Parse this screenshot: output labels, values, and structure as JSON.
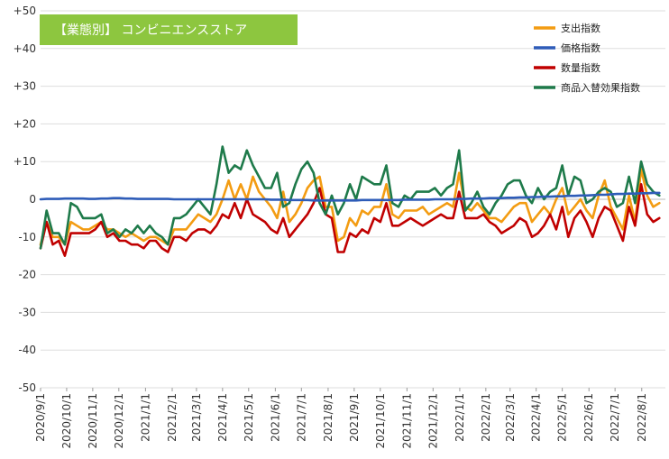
{
  "chart_data": {
    "type": "line",
    "title": "【業態別】 コンビニエンスストア",
    "title_bg": "#8dc63f",
    "ylim": [
      -50,
      50
    ],
    "ytick_values": [
      50,
      40,
      30,
      20,
      10,
      0,
      -10,
      -20,
      -30,
      -40,
      -50
    ],
    "ytick_labels": [
      "+50",
      "+40",
      "+30",
      "+20",
      "+10",
      "0",
      "-10",
      "-20",
      "-30",
      "-40",
      "-50"
    ],
    "x_tick_labels": [
      "2020/9/1",
      "2020/10/1",
      "2020/11/1",
      "2020/12/1",
      "2021/1/1",
      "2021/2/1",
      "2021/3/1",
      "2021/4/1",
      "2021/5/1",
      "2021/6/1",
      "2021/7/1",
      "2021/8/1",
      "2021/9/1",
      "2021/10/1",
      "2021/11/1",
      "2021/12/1",
      "2022/1/1",
      "2022/2/1",
      "2022/3/1",
      "2022/4/1",
      "2022/5/1",
      "2022/6/1",
      "2022/7/1",
      "2022/8/1"
    ],
    "x_tick_weeks": [
      0,
      4.3,
      8.6,
      12.9,
      17.3,
      21.7,
      25.7,
      30,
      34.3,
      38.7,
      43,
      47.4,
      51.7,
      56,
      60.4,
      64.7,
      69.1,
      73.4,
      77.4,
      81.7,
      86,
      90.4,
      94.7,
      99.1
    ],
    "x_week_range": [
      0,
      103
    ],
    "grid": true,
    "legend_position": "top-right",
    "series": [
      {
        "name": "支出指数",
        "color": "#f39c12",
        "values": [
          -12,
          -6,
          -10,
          -10,
          -12,
          -6,
          -7,
          -8,
          -8,
          -7,
          -6,
          -8,
          -8,
          -9,
          -10,
          -9,
          -10,
          -11,
          -10,
          -10,
          -11,
          -12,
          -8,
          -8,
          -8,
          -6,
          -4,
          -5,
          -6,
          -4,
          0,
          5,
          0,
          4,
          0,
          6,
          2,
          0,
          -2,
          -5,
          2,
          -6,
          -4,
          -1,
          3,
          5,
          6,
          -2,
          -2,
          -11,
          -10,
          -5,
          -7,
          -3,
          -4,
          -2,
          -2,
          4,
          -4,
          -5,
          -3,
          -3,
          -3,
          -2,
          -4,
          -3,
          -2,
          -1,
          -2,
          7,
          -2,
          -3,
          -1,
          -3,
          -5,
          -5,
          -6,
          -4,
          -2,
          -1,
          -1,
          -6,
          -4,
          -2,
          -4,
          0,
          3,
          -4,
          -2,
          0,
          -3,
          -5,
          1,
          5,
          -2,
          -5,
          -8,
          1,
          -6,
          8,
          1,
          -2,
          -1
        ]
      },
      {
        "name": "価格指数",
        "color": "#2e5cb8",
        "values": [
          0,
          0.1,
          0.1,
          0.1,
          0.2,
          0.2,
          0.2,
          0.2,
          0.1,
          0.1,
          0.2,
          0.2,
          0.3,
          0.3,
          0.2,
          0.2,
          0.1,
          0.1,
          0.1,
          0.1,
          0.1,
          0.1,
          0,
          0,
          0,
          0,
          0,
          0,
          0,
          0,
          0,
          0,
          0,
          0,
          0,
          0,
          0,
          0,
          -0.1,
          -0.1,
          -0.1,
          -0.2,
          -0.2,
          -0.2,
          -0.2,
          -0.3,
          -0.3,
          -0.3,
          -0.3,
          -0.3,
          -0.3,
          -0.3,
          -0.3,
          -0.2,
          -0.2,
          -0.2,
          -0.2,
          -0.2,
          -0.2,
          -0.2,
          -0.1,
          -0.1,
          -0.1,
          -0.1,
          -0.1,
          0,
          0,
          0,
          0,
          0.1,
          0.1,
          0.2,
          0.2,
          0.2,
          0.3,
          0.3,
          0.3,
          0.4,
          0.4,
          0.5,
          0.5,
          0.6,
          0.6,
          0.7,
          0.7,
          0.8,
          0.8,
          0.9,
          0.9,
          1.0,
          1.0,
          1.1,
          1.2,
          1.2,
          1.3,
          1.4,
          1.4,
          1.5,
          1.5,
          1.6,
          1.6,
          1.7,
          1.7
        ]
      },
      {
        "name": "数量指数",
        "color": "#c00000",
        "values": [
          -13,
          -6,
          -12,
          -11,
          -15,
          -9,
          -9,
          -9,
          -9,
          -8,
          -6,
          -10,
          -9,
          -11,
          -11,
          -12,
          -12,
          -13,
          -11,
          -11,
          -13,
          -14,
          -10,
          -10,
          -11,
          -9,
          -8,
          -8,
          -9,
          -7,
          -4,
          -5,
          -1,
          -5,
          0,
          -4,
          -5,
          -6,
          -8,
          -9,
          -5,
          -10,
          -8,
          -6,
          -4,
          -1,
          3,
          -4,
          -5,
          -14,
          -14,
          -9,
          -10,
          -8,
          -9,
          -5,
          -6,
          -1,
          -7,
          -7,
          -6,
          -5,
          -6,
          -7,
          -6,
          -5,
          -4,
          -5,
          -5,
          2,
          -5,
          -5,
          -5,
          -4,
          -6,
          -7,
          -9,
          -8,
          -7,
          -5,
          -6,
          -10,
          -9,
          -7,
          -4,
          -8,
          -2,
          -10,
          -5,
          -3,
          -6,
          -10,
          -5,
          -2,
          -3,
          -7,
          -11,
          -2,
          -7,
          4,
          -4,
          -6,
          -5
        ]
      },
      {
        "name": "商品入替効果指数",
        "color": "#1e7a4a",
        "values": [
          -13,
          -3,
          -9,
          -9,
          -12,
          -1,
          -2,
          -5,
          -5,
          -5,
          -4,
          -9,
          -8,
          -10,
          -8,
          -9,
          -7,
          -9,
          -7,
          -9,
          -10,
          -12,
          -5,
          -5,
          -4,
          -2,
          0,
          -2,
          -4,
          4,
          14,
          7,
          9,
          8,
          13,
          9,
          6,
          3,
          3,
          7,
          -2,
          -1,
          4,
          8,
          10,
          7,
          -1,
          -4,
          1,
          -4,
          -1,
          4,
          0,
          6,
          5,
          4,
          4,
          9,
          -1,
          -2,
          1,
          0,
          2,
          2,
          2,
          3,
          1,
          3,
          4,
          13,
          -3,
          -1,
          2,
          -2,
          -4,
          -1,
          1,
          4,
          5,
          5,
          1,
          -1,
          3,
          0,
          2,
          3,
          9,
          1,
          6,
          5,
          -1,
          0,
          2,
          3,
          2,
          -2,
          -1,
          6,
          -1,
          10,
          4,
          2,
          1
        ]
      }
    ]
  }
}
